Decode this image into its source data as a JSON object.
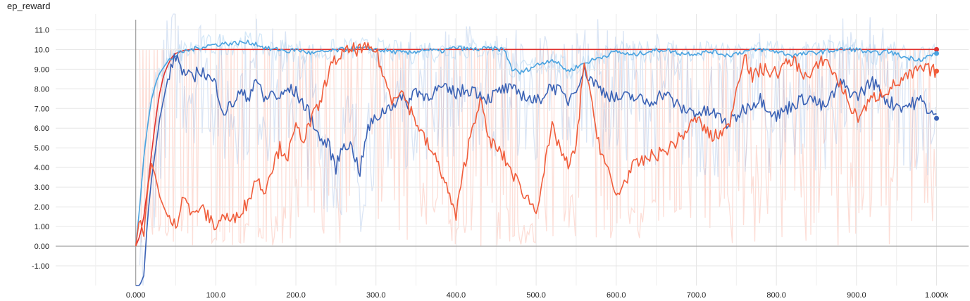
{
  "chart_data": {
    "type": "line",
    "title": "ep_reward",
    "xlabel": "",
    "ylabel": "",
    "xlim": [
      -100,
      1040
    ],
    "ylim": [
      -2.0,
      11.8
    ],
    "x_ticks": [
      0,
      100,
      200,
      300,
      400,
      500,
      600,
      700,
      800,
      900,
      1000
    ],
    "x_tick_labels": [
      "0.000",
      "100.0",
      "200.0",
      "300.0",
      "400.0",
      "500.0",
      "600.0",
      "700.0",
      "800.0",
      "900.0",
      "1.000k"
    ],
    "y_ticks": [
      -1,
      0,
      1,
      2,
      3,
      4,
      5,
      6,
      7,
      8,
      9,
      10,
      11
    ],
    "y_tick_labels": [
      "-1.00",
      "0.00",
      "1.00",
      "2.00",
      "3.00",
      "4.00",
      "5.00",
      "6.00",
      "7.00",
      "8.00",
      "9.00",
      "10.0",
      "11.0"
    ],
    "grid": true,
    "legend": "none",
    "series": [
      {
        "color": "#e0312e",
        "x": [
          0,
          5,
          10,
          15,
          20,
          25,
          30,
          35,
          40,
          45,
          50,
          60,
          70,
          80,
          100,
          150,
          200,
          300,
          400,
          500,
          600,
          700,
          800,
          900,
          1000
        ],
        "values": [
          0,
          0.5,
          1.5,
          3.0,
          4.8,
          6.5,
          7.8,
          8.7,
          9.2,
          9.6,
          9.8,
          9.95,
          10.0,
          10.0,
          10.0,
          10.0,
          10.0,
          10.0,
          10.0,
          10.0,
          10.0,
          10.0,
          10.0,
          10.0,
          10.0
        ]
      },
      {
        "color": "#4aa3e0",
        "x": [
          0,
          5,
          10,
          15,
          20,
          25,
          30,
          40,
          50,
          60,
          70,
          80,
          90,
          100,
          110,
          120,
          130,
          140,
          150,
          160,
          170,
          180,
          190,
          200,
          220,
          240,
          260,
          280,
          300,
          320,
          340,
          360,
          380,
          400,
          420,
          440,
          460,
          470,
          480,
          500,
          520,
          540,
          560,
          580,
          600,
          620,
          640,
          660,
          680,
          700,
          720,
          740,
          760,
          780,
          800,
          820,
          840,
          860,
          880,
          900,
          920,
          940,
          960,
          980,
          1000
        ],
        "values": [
          0,
          2.0,
          4.5,
          6.2,
          7.5,
          8.3,
          8.8,
          9.4,
          9.7,
          9.9,
          10.0,
          10.1,
          10.2,
          10.25,
          10.3,
          10.3,
          10.35,
          10.35,
          10.3,
          10.1,
          10.0,
          10.0,
          9.9,
          10.0,
          9.8,
          9.9,
          10.0,
          10.05,
          10.0,
          9.9,
          9.8,
          10.0,
          9.9,
          10.1,
          10.0,
          10.05,
          10.0,
          9.0,
          8.8,
          9.2,
          9.5,
          8.9,
          9.3,
          9.6,
          9.9,
          9.7,
          9.9,
          10.0,
          9.8,
          9.8,
          9.9,
          9.7,
          9.9,
          10.0,
          9.9,
          9.7,
          9.8,
          9.9,
          10.0,
          10.0,
          9.8,
          9.9,
          9.6,
          9.5,
          9.8
        ]
      },
      {
        "color": "#3b62b5",
        "x": [
          0,
          5,
          10,
          15,
          20,
          30,
          40,
          50,
          60,
          70,
          80,
          90,
          100,
          110,
          120,
          130,
          140,
          150,
          160,
          170,
          180,
          190,
          200,
          210,
          220,
          230,
          240,
          250,
          260,
          270,
          280,
          290,
          300,
          310,
          320,
          330,
          340,
          350,
          360,
          380,
          400,
          420,
          440,
          460,
          480,
          500,
          520,
          540,
          560,
          580,
          600,
          620,
          640,
          660,
          680,
          700,
          720,
          740,
          760,
          780,
          800,
          820,
          840,
          860,
          880,
          900,
          920,
          940,
          960,
          980,
          1000
        ],
        "values": [
          -2.0,
          -2.0,
          -1.5,
          1.5,
          3.5,
          6.5,
          8.5,
          9.7,
          8.8,
          8.5,
          9.0,
          8.6,
          8.2,
          6.8,
          7.2,
          7.8,
          7.5,
          8.6,
          7.4,
          7.8,
          7.5,
          8.0,
          7.8,
          7.2,
          6.5,
          5.4,
          5.2,
          4.0,
          5.3,
          5.0,
          3.8,
          6.0,
          6.5,
          6.9,
          7.2,
          7.5,
          7.3,
          8.0,
          7.6,
          8.0,
          7.8,
          8.0,
          7.5,
          8.0,
          7.8,
          7.3,
          8.2,
          7.4,
          8.9,
          8.0,
          7.5,
          7.6,
          7.3,
          7.8,
          7.0,
          6.8,
          6.8,
          6.2,
          7.0,
          7.5,
          6.6,
          7.2,
          7.6,
          7.0,
          8.3,
          7.6,
          8.4,
          7.3,
          7.1,
          7.4,
          6.5
        ]
      },
      {
        "color": "#f05d3b",
        "x": [
          0,
          5,
          10,
          15,
          20,
          25,
          30,
          40,
          50,
          60,
          70,
          80,
          90,
          100,
          110,
          120,
          130,
          140,
          150,
          160,
          170,
          180,
          190,
          200,
          210,
          220,
          230,
          240,
          250,
          260,
          270,
          280,
          300,
          310,
          320,
          330,
          340,
          360,
          380,
          400,
          410,
          420,
          430,
          440,
          460,
          480,
          500,
          520,
          540,
          550,
          560,
          570,
          580,
          600,
          620,
          640,
          660,
          680,
          700,
          720,
          740,
          750,
          760,
          770,
          780,
          800,
          820,
          840,
          860,
          880,
          900,
          920,
          940,
          960,
          980,
          1000
        ],
        "values": [
          0,
          1.5,
          0.5,
          3.0,
          4.2,
          3.5,
          2.5,
          1.5,
          1.0,
          2.8,
          1.5,
          2.0,
          1.5,
          1.0,
          1.6,
          1.2,
          1.8,
          2.2,
          3.5,
          2.8,
          4.0,
          5.0,
          4.6,
          6.0,
          5.5,
          6.5,
          7.2,
          8.8,
          9.5,
          9.8,
          10.0,
          10.0,
          10.0,
          8.5,
          7.5,
          8.0,
          7.2,
          5.5,
          4.0,
          1.5,
          4.0,
          6.0,
          7.5,
          5.5,
          4.5,
          3.0,
          1.8,
          6.0,
          4.0,
          5.0,
          9.5,
          7.0,
          5.0,
          2.5,
          4.0,
          4.5,
          4.8,
          5.5,
          6.5,
          5.5,
          6.0,
          8.0,
          9.8,
          8.5,
          9.0,
          8.8,
          9.5,
          8.5,
          9.6,
          8.2,
          6.5,
          7.5,
          8.0,
          8.5,
          9.0,
          8.9
        ]
      }
    ]
  }
}
